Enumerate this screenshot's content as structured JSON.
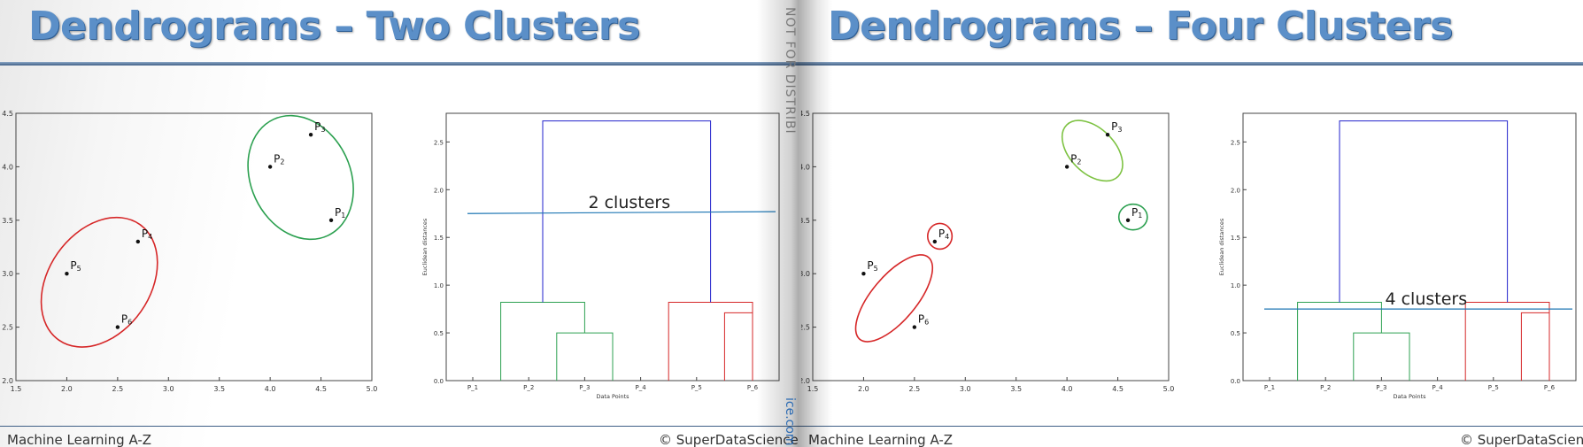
{
  "slides": [
    {
      "title": "Dendrograms – Two Clusters",
      "footer_left": "Machine Learning A-Z",
      "footer_right": "© SuperDataScience",
      "threshold_label": "2 clusters"
    },
    {
      "title": "Dendrograms – Four Clusters",
      "footer_left": "Machine Learning A-Z",
      "footer_right": "© SuperDataScience",
      "threshold_label": "4 clusters"
    }
  ],
  "overlay": {
    "watermark": "NOT FOR DISTRIBI",
    "watermark_url": "ice.com"
  },
  "colors": {
    "title": "#5b8fc8",
    "cluster_green": "#2ca050",
    "cluster_red": "#d62728",
    "cluster_lightgreen": "#7dc242",
    "merge_blue": "#2222cc",
    "threshold": "#1f77b4"
  },
  "chart_data": [
    {
      "type": "scatter",
      "title": "",
      "xlabel": "",
      "ylabel": "",
      "xlim": [
        1.5,
        5.0
      ],
      "ylim": [
        2.0,
        4.5
      ],
      "xticks": [
        "1.5",
        "2.0",
        "2.5",
        "3.0",
        "3.5",
        "4.0",
        "4.5",
        "5.0"
      ],
      "yticks": [
        "2.0",
        "2.5",
        "3.0",
        "3.5",
        "4.0",
        "4.5"
      ],
      "points": [
        {
          "label": "P",
          "sub": "1",
          "x": 4.6,
          "y": 3.5
        },
        {
          "label": "P",
          "sub": "2",
          "x": 4.0,
          "y": 4.0
        },
        {
          "label": "P",
          "sub": "3",
          "x": 4.4,
          "y": 4.3
        },
        {
          "label": "P",
          "sub": "4",
          "x": 2.7,
          "y": 3.3
        },
        {
          "label": "P",
          "sub": "5",
          "x": 2.0,
          "y": 3.0
        },
        {
          "label": "P",
          "sub": "6",
          "x": 2.5,
          "y": 2.5
        }
      ],
      "clusters": [
        {
          "color": "green",
          "cx": 4.3,
          "cy": 3.9,
          "rx": 0.49,
          "ry": 0.6,
          "rotate": -25
        },
        {
          "color": "red",
          "cx": 2.32,
          "cy": 2.92,
          "rx": 0.5,
          "ry": 0.66,
          "rotate": 35
        }
      ]
    },
    {
      "type": "dendrogram",
      "title": "",
      "xlabel": "Data Points",
      "ylabel": "Euclidean distances",
      "ylim": [
        0.0,
        2.8
      ],
      "yticks": [
        "0.0",
        "0.5",
        "1.0",
        "1.5",
        "2.0",
        "2.5"
      ],
      "leaves": [
        "P_1",
        "P_2",
        "P_3",
        "P_4",
        "P_5",
        "P_6"
      ],
      "merges": [
        {
          "color": "green",
          "a": 1.5,
          "ha": 0.0,
          "b": 2.5,
          "hb": 0.0,
          "h": 0.5
        },
        {
          "color": "green",
          "a": 0.5,
          "ha": 0.0,
          "b": 2.0,
          "hb": 0.5,
          "h": 0.82
        },
        {
          "color": "red",
          "a": 4.5,
          "ha": 0.0,
          "b": 5.5,
          "hb": 0.0,
          "h": 0.71
        },
        {
          "color": "red",
          "a": 3.5,
          "ha": 0.0,
          "b": 5.0,
          "hb": 0.71,
          "h": 0.82
        },
        {
          "color": "blue",
          "a": 1.25,
          "ha": 0.82,
          "b": 4.25,
          "hb": 0.82,
          "h": 2.72
        }
      ],
      "threshold": {
        "y_start": 1.75,
        "y_end": 1.77
      }
    },
    {
      "type": "scatter",
      "title": "",
      "xlabel": "",
      "ylabel": "",
      "xlim": [
        1.5,
        5.0
      ],
      "ylim": [
        2.0,
        4.5
      ],
      "xticks": [
        "1.5",
        "2.0",
        "2.5",
        "3.0",
        "3.5",
        "4.0",
        "4.5",
        "5.0"
      ],
      "yticks": [
        "2.0",
        "2.5",
        "3.0",
        "3.5",
        "4.0",
        "4.5"
      ],
      "points": [
        {
          "label": "P",
          "sub": "1",
          "x": 4.6,
          "y": 3.5
        },
        {
          "label": "P",
          "sub": "2",
          "x": 4.0,
          "y": 4.0
        },
        {
          "label": "P",
          "sub": "3",
          "x": 4.4,
          "y": 4.3
        },
        {
          "label": "P",
          "sub": "4",
          "x": 2.7,
          "y": 3.3
        },
        {
          "label": "P",
          "sub": "5",
          "x": 2.0,
          "y": 3.0
        },
        {
          "label": "P",
          "sub": "6",
          "x": 2.5,
          "y": 2.5
        }
      ],
      "clusters": [
        {
          "color": "lightgreen",
          "cx": 4.25,
          "cy": 4.15,
          "rx": 0.22,
          "ry": 0.34,
          "rotate": -45
        },
        {
          "color": "green",
          "cx": 4.65,
          "cy": 3.53,
          "rx": 0.14,
          "ry": 0.12,
          "rotate": 0
        },
        {
          "color": "red",
          "cx": 2.75,
          "cy": 3.35,
          "rx": 0.12,
          "ry": 0.12,
          "rotate": 0
        },
        {
          "color": "red",
          "cx": 2.3,
          "cy": 2.77,
          "rx": 0.22,
          "ry": 0.5,
          "rotate": 40
        }
      ]
    },
    {
      "type": "dendrogram",
      "title": "",
      "xlabel": "Data Points",
      "ylabel": "Euclidean distances",
      "ylim": [
        0.0,
        2.8
      ],
      "yticks": [
        "0.0",
        "0.5",
        "1.0",
        "1.5",
        "2.0",
        "2.5"
      ],
      "leaves": [
        "P_1",
        "P_2",
        "P_3",
        "P_4",
        "P_5",
        "P_6"
      ],
      "merges": [
        {
          "color": "green",
          "a": 1.5,
          "ha": 0.0,
          "b": 2.5,
          "hb": 0.0,
          "h": 0.5
        },
        {
          "color": "green",
          "a": 0.5,
          "ha": 0.0,
          "b": 2.0,
          "hb": 0.5,
          "h": 0.82
        },
        {
          "color": "red",
          "a": 4.5,
          "ha": 0.0,
          "b": 5.5,
          "hb": 0.0,
          "h": 0.71
        },
        {
          "color": "red",
          "a": 3.5,
          "ha": 0.0,
          "b": 5.0,
          "hb": 0.71,
          "h": 0.82
        },
        {
          "color": "blue",
          "a": 1.25,
          "ha": 0.82,
          "b": 4.25,
          "hb": 0.82,
          "h": 2.72
        }
      ],
      "threshold": {
        "y_start": 0.75,
        "y_end": 0.75
      }
    }
  ]
}
